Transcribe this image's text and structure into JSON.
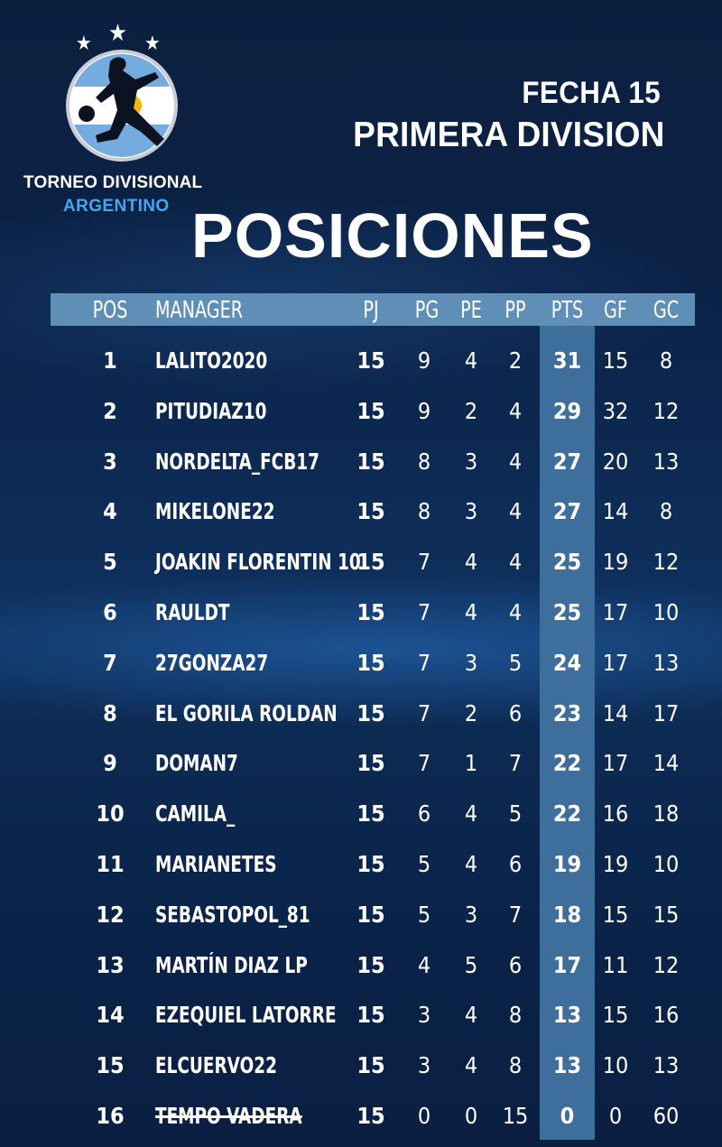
{
  "brand": {
    "line1": "TORNEO DIVISIONAL",
    "line2": "ARGENTINO",
    "logo_icon": "soccer-player-emblem-icon",
    "star_icon": "star-icon"
  },
  "header": {
    "fecha": "FECHA 15",
    "division": "PRIMERA DIVISION",
    "title": "POSICIONES"
  },
  "colors": {
    "accent": "#47a6f1",
    "header_bar": "#5f8fb6",
    "pts_column": "#3e6f9c",
    "background": "#0d2c57"
  },
  "table": {
    "columns": [
      "POS",
      "MANAGER",
      "PJ",
      "PG",
      "PE",
      "PP",
      "PTS",
      "GF",
      "GC"
    ],
    "rows": [
      {
        "pos": "1",
        "manager": "LALITO2020",
        "pj": "15",
        "pg": "9",
        "pe": "4",
        "pp": "2",
        "pts": "31",
        "gf": "15",
        "gc": "8"
      },
      {
        "pos": "2",
        "manager": "PITUDIAZ10",
        "pj": "15",
        "pg": "9",
        "pe": "2",
        "pp": "4",
        "pts": "29",
        "gf": "32",
        "gc": "12"
      },
      {
        "pos": "3",
        "manager": "NORDELTA_FCB17",
        "pj": "15",
        "pg": "8",
        "pe": "3",
        "pp": "4",
        "pts": "27",
        "gf": "20",
        "gc": "13"
      },
      {
        "pos": "4",
        "manager": "MIKELONE22",
        "pj": "15",
        "pg": "8",
        "pe": "3",
        "pp": "4",
        "pts": "27",
        "gf": "14",
        "gc": "8"
      },
      {
        "pos": "5",
        "manager": "JOAKIN FLORENTIN 10",
        "pj": "15",
        "pg": "7",
        "pe": "4",
        "pp": "4",
        "pts": "25",
        "gf": "19",
        "gc": "12"
      },
      {
        "pos": "6",
        "manager": "RAULDT",
        "pj": "15",
        "pg": "7",
        "pe": "4",
        "pp": "4",
        "pts": "25",
        "gf": "17",
        "gc": "10"
      },
      {
        "pos": "7",
        "manager": "27GONZA27",
        "pj": "15",
        "pg": "7",
        "pe": "3",
        "pp": "5",
        "pts": "24",
        "gf": "17",
        "gc": "13"
      },
      {
        "pos": "8",
        "manager": "EL GORILA ROLDAN",
        "pj": "15",
        "pg": "7",
        "pe": "2",
        "pp": "6",
        "pts": "23",
        "gf": "14",
        "gc": "17"
      },
      {
        "pos": "9",
        "manager": "DOMAN7",
        "pj": "15",
        "pg": "7",
        "pe": "1",
        "pp": "7",
        "pts": "22",
        "gf": "17",
        "gc": "14"
      },
      {
        "pos": "10",
        "manager": "CAMILA_",
        "pj": "15",
        "pg": "6",
        "pe": "4",
        "pp": "5",
        "pts": "22",
        "gf": "16",
        "gc": "18"
      },
      {
        "pos": "11",
        "manager": "MARIANETES",
        "pj": "15",
        "pg": "5",
        "pe": "4",
        "pp": "6",
        "pts": "19",
        "gf": "19",
        "gc": "10"
      },
      {
        "pos": "12",
        "manager": "SEBASTOPOL_81",
        "pj": "15",
        "pg": "5",
        "pe": "3",
        "pp": "7",
        "pts": "18",
        "gf": "15",
        "gc": "15"
      },
      {
        "pos": "13",
        "manager": "MARTÍN DIAZ LP",
        "pj": "15",
        "pg": "4",
        "pe": "5",
        "pp": "6",
        "pts": "17",
        "gf": "11",
        "gc": "12"
      },
      {
        "pos": "14",
        "manager": "EZEQUIEL LATORRE",
        "pj": "15",
        "pg": "3",
        "pe": "4",
        "pp": "8",
        "pts": "13",
        "gf": "15",
        "gc": "16"
      },
      {
        "pos": "15",
        "manager": "ELCUERVO22",
        "pj": "15",
        "pg": "3",
        "pe": "4",
        "pp": "8",
        "pts": "13",
        "gf": "10",
        "gc": "13"
      },
      {
        "pos": "16",
        "manager": "TEMPO VADERA",
        "pj": "15",
        "pg": "0",
        "pe": "0",
        "pp": "15",
        "pts": "0",
        "gf": "0",
        "gc": "60",
        "struck": true
      }
    ]
  }
}
